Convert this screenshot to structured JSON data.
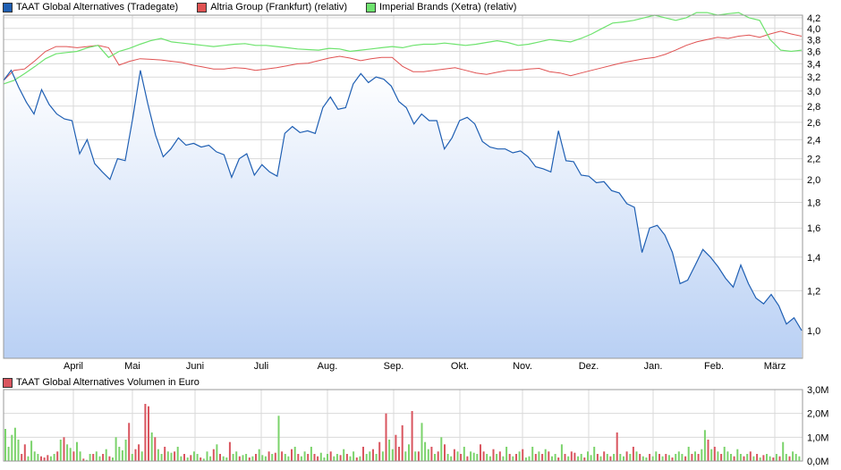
{
  "legend": {
    "series_1": "TAAT Global Alternatives (Tradegate)",
    "series_2": "Altria Group (Frankfurt) (relativ)",
    "series_3": "Imperial Brands (Xetra) (relativ)"
  },
  "volume_legend": "TAAT Global Alternatives Volumen in Euro",
  "colors": {
    "taat": "#1f5fb3",
    "altria": "#e05252",
    "imperial": "#6ee36e",
    "vol_up": "#7bd36b",
    "vol_down": "#d9555f",
    "area_top": "#ffffff",
    "area_bottom": "#b9d0f4",
    "grid": "#dadada"
  },
  "chart_data": [
    {
      "type": "line",
      "y_ticks": [
        "1,0",
        "1,2",
        "1,4",
        "1,6",
        "1,8",
        "2,0",
        "2,2",
        "2,4",
        "2,6",
        "2,8",
        "3,0",
        "3,2",
        "3,4",
        "3,6",
        "3,8",
        "4,0",
        "4,2"
      ],
      "x_ticks": [
        "April",
        "Mai",
        "Juni",
        "Juli",
        "Aug.",
        "Sep.",
        "Okt.",
        "Nov.",
        "Dez.",
        "Jan.",
        "Feb.",
        "März"
      ],
      "ylim": [
        0.88,
        4.25
      ],
      "log_scale": true,
      "grid": true,
      "series": [
        {
          "name": "TAAT Global Alternatives (Tradegate)",
          "values": [
            3.15,
            3.3,
            3.05,
            2.85,
            2.7,
            3.02,
            2.82,
            2.7,
            2.64,
            2.62,
            2.25,
            2.4,
            2.15,
            2.07,
            2.0,
            2.2,
            2.18,
            2.65,
            3.3,
            2.82,
            2.45,
            2.22,
            2.3,
            2.42,
            2.34,
            2.36,
            2.32,
            2.34,
            2.27,
            2.24,
            2.02,
            2.2,
            2.25,
            2.04,
            2.14,
            2.07,
            2.03,
            2.47,
            2.55,
            2.48,
            2.5,
            2.47,
            2.78,
            2.92,
            2.76,
            2.78,
            3.1,
            3.25,
            3.12,
            3.2,
            3.17,
            3.07,
            2.86,
            2.78,
            2.58,
            2.7,
            2.62,
            2.62,
            2.3,
            2.42,
            2.62,
            2.66,
            2.58,
            2.38,
            2.32,
            2.3,
            2.3,
            2.26,
            2.28,
            2.22,
            2.12,
            2.1,
            2.07,
            2.5,
            2.18,
            2.17,
            2.04,
            2.03,
            1.97,
            1.98,
            1.9,
            1.88,
            1.79,
            1.76,
            1.43,
            1.6,
            1.62,
            1.55,
            1.43,
            1.24,
            1.26,
            1.35,
            1.45,
            1.4,
            1.34,
            1.27,
            1.22,
            1.35,
            1.24,
            1.16,
            1.13,
            1.18,
            1.12,
            1.03,
            1.06,
            1.0
          ]
        },
        {
          "name": "Altria Group (Frankfurt) (relativ)",
          "values": [
            3.15,
            3.3,
            3.32,
            3.45,
            3.6,
            3.68,
            3.68,
            3.66,
            3.68,
            3.7,
            3.66,
            3.38,
            3.44,
            3.48,
            3.47,
            3.46,
            3.44,
            3.42,
            3.38,
            3.35,
            3.32,
            3.32,
            3.34,
            3.33,
            3.3,
            3.32,
            3.34,
            3.37,
            3.4,
            3.41,
            3.45,
            3.49,
            3.52,
            3.49,
            3.45,
            3.48,
            3.5,
            3.5,
            3.36,
            3.28,
            3.28,
            3.3,
            3.32,
            3.34,
            3.3,
            3.26,
            3.24,
            3.27,
            3.3,
            3.3,
            3.32,
            3.33,
            3.28,
            3.26,
            3.22,
            3.26,
            3.3,
            3.34,
            3.38,
            3.42,
            3.45,
            3.48,
            3.5,
            3.55,
            3.62,
            3.7,
            3.76,
            3.8,
            3.84,
            3.82,
            3.86,
            3.88,
            3.84,
            3.9,
            3.95,
            3.9,
            3.86
          ]
        },
        {
          "name": "Imperial Brands (Xetra) (relativ)",
          "values": [
            3.1,
            3.15,
            3.25,
            3.36,
            3.48,
            3.56,
            3.58,
            3.6,
            3.66,
            3.7,
            3.5,
            3.6,
            3.65,
            3.72,
            3.78,
            3.82,
            3.76,
            3.74,
            3.72,
            3.7,
            3.68,
            3.7,
            3.72,
            3.73,
            3.7,
            3.7,
            3.68,
            3.66,
            3.64,
            3.63,
            3.62,
            3.65,
            3.64,
            3.6,
            3.62,
            3.64,
            3.66,
            3.68,
            3.66,
            3.7,
            3.72,
            3.72,
            3.74,
            3.72,
            3.7,
            3.72,
            3.75,
            3.78,
            3.75,
            3.7,
            3.72,
            3.76,
            3.8,
            3.78,
            3.76,
            3.82,
            3.9,
            4.0,
            4.1,
            4.12,
            4.15,
            4.2,
            4.25,
            4.2,
            4.15,
            4.2,
            4.3,
            4.3,
            4.25,
            4.28,
            4.3,
            4.2,
            4.15,
            3.8,
            3.62,
            3.6,
            3.62
          ]
        }
      ]
    },
    {
      "type": "bar",
      "title": "TAAT Global Alternatives Volumen in Euro",
      "y_ticks": [
        "0,0M",
        "1,0M",
        "2,0M",
        "3,0M"
      ],
      "ylim": [
        0,
        3.0
      ],
      "grid": true,
      "series": [
        {
          "name": "TAAT Global Alternatives Volumen in Euro",
          "values": [
            1.35,
            0.6,
            1.1,
            1.4,
            0.9,
            0.3,
            0.7,
            0.2,
            0.85,
            0.4,
            0.3,
            0.2,
            0.15,
            0.25,
            0.2,
            0.3,
            0.4,
            0.9,
            1.0,
            0.7,
            0.55,
            0.4,
            0.8,
            0.4,
            0.1,
            0.05,
            0.3,
            0.3,
            0.4,
            0.2,
            0.3,
            0.5,
            0.2,
            0.15,
            1.0,
            0.6,
            0.45,
            0.9,
            1.6,
            0.3,
            0.5,
            0.7,
            0.4,
            2.4,
            2.3,
            1.2,
            1.0,
            0.5,
            0.3,
            0.6,
            0.4,
            0.35,
            0.4,
            0.6,
            0.2,
            0.3,
            0.15,
            0.25,
            0.4,
            0.3,
            0.15,
            0.1,
            0.4,
            0.2,
            0.5,
            0.7,
            0.3,
            0.2,
            0.15,
            0.8,
            0.3,
            0.4,
            0.2,
            0.25,
            0.3,
            0.15,
            0.2,
            0.3,
            0.5,
            0.25,
            0.2,
            0.4,
            0.3,
            0.35,
            1.9,
            0.4,
            0.3,
            0.2,
            0.5,
            0.6,
            0.3,
            0.2,
            0.4,
            0.3,
            0.6,
            0.3,
            0.2,
            0.35,
            0.15,
            0.3,
            0.4,
            0.2,
            0.3,
            0.25,
            0.5,
            0.3,
            0.2,
            0.4,
            0.15,
            0.2,
            0.6,
            0.3,
            0.4,
            0.5,
            0.3,
            0.8,
            0.4,
            2.0,
            0.9,
            0.5,
            1.1,
            0.6,
            1.5,
            0.4,
            0.7,
            2.1,
            0.4,
            0.4,
            1.6,
            0.8,
            0.5,
            0.6,
            0.3,
            0.4,
            1.0,
            0.7,
            0.3,
            0.2,
            0.5,
            0.4,
            0.3,
            0.6,
            0.2,
            0.4,
            0.35,
            0.3,
            0.7,
            0.4,
            0.3,
            0.2,
            0.5,
            0.3,
            0.4,
            0.2,
            0.6,
            0.3,
            0.2,
            0.3,
            0.4,
            0.5,
            0.15,
            0.2,
            0.6,
            0.3,
            0.4,
            0.3,
            0.5,
            0.4,
            0.2,
            0.3,
            0.15,
            0.7,
            0.3,
            0.2,
            0.4,
            0.35,
            0.2,
            0.3,
            0.15,
            0.4,
            0.25,
            0.6,
            0.3,
            0.2,
            0.4,
            0.3,
            0.2,
            0.3,
            1.2,
            0.3,
            0.2,
            0.4,
            0.3,
            0.6,
            0.4,
            0.3,
            0.2,
            0.15,
            0.3,
            0.2,
            0.4,
            0.3,
            0.2,
            0.3,
            0.25,
            0.15,
            0.3,
            0.4,
            0.3,
            0.2,
            0.6,
            0.3,
            0.4,
            0.3,
            0.5,
            1.3,
            0.9,
            0.5,
            0.6,
            0.4,
            0.3,
            0.6,
            0.4,
            0.3,
            0.2,
            0.5,
            0.3,
            0.2,
            0.3,
            0.4,
            0.2,
            0.3,
            0.15,
            0.25,
            0.3,
            0.2,
            0.15,
            0.3,
            0.2,
            0.8,
            0.3,
            0.2,
            0.4,
            0.3,
            0.2
          ],
          "direction": "uugguddggugdddgudgdgudgudugduudgdgggugdgdduddgdgudugdgudgdgudgugdgdugdugdugdudgugdgdgdgudgdgudgddgugdgudgdugdudgudgdgdugdddgudgdgugdudgdgudgdudgugddgudgdugdudgdgugdudgdugdgduddgudgugdudgdgdugdudgdgudgudgdudgugdudgdgudgdudgugdgudgdudgdgudgdugd"
        }
      ]
    }
  ]
}
